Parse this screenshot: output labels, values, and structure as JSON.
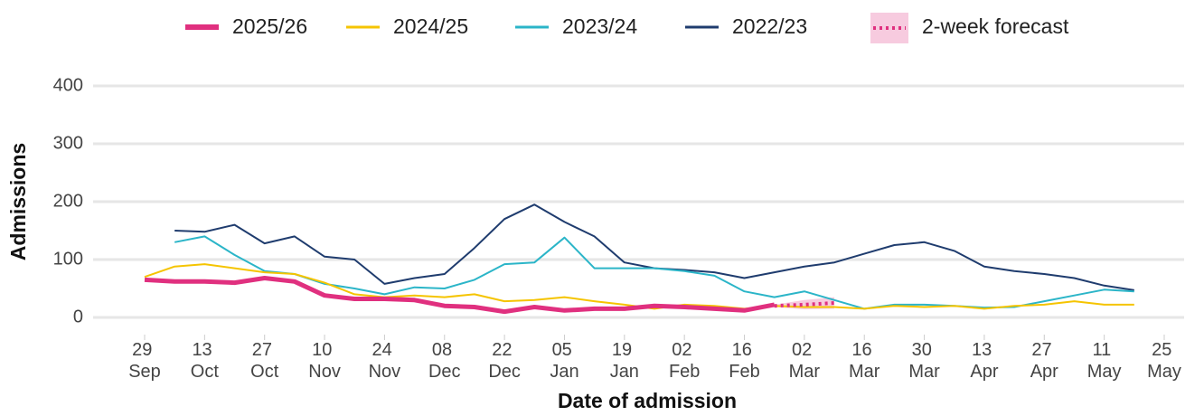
{
  "chart_data": {
    "type": "line",
    "x_label": "Date of admission",
    "y_label": "Admissions",
    "x": [
      "29 Sep",
      "06 Oct",
      "13 Oct",
      "20 Oct",
      "27 Oct",
      "03 Nov",
      "10 Nov",
      "17 Nov",
      "24 Nov",
      "01 Dec",
      "08 Dec",
      "15 Dec",
      "22 Dec",
      "29 Dec",
      "05 Jan",
      "12 Jan",
      "19 Jan",
      "26 Jan",
      "02 Feb",
      "09 Feb",
      "16 Feb",
      "23 Feb",
      "02 Mar",
      "09 Mar",
      "16 Mar",
      "23 Mar",
      "30 Mar",
      "06 Apr",
      "13 Apr",
      "20 Apr",
      "27 Apr",
      "04 May",
      "11 May",
      "18 May",
      "25 May"
    ],
    "xticks": [
      "29 Sep",
      "13 Oct",
      "27 Oct",
      "10 Nov",
      "24 Nov",
      "08 Dec",
      "22 Dec",
      "05 Jan",
      "19 Jan",
      "02 Feb",
      "16 Feb",
      "02 Mar",
      "16 Mar",
      "30 Mar",
      "13 Apr",
      "27 Apr",
      "11 May",
      "25 May"
    ],
    "ylim": [
      -30,
      420
    ],
    "yticks": [
      0,
      100,
      200,
      300,
      400
    ],
    "grid": true,
    "series": [
      {
        "name": "2025/26",
        "color": "#e0307f",
        "width": 5,
        "values": [
          65,
          62,
          62,
          60,
          68,
          62,
          38,
          32,
          32,
          30,
          20,
          18,
          10,
          18,
          12,
          15,
          15,
          20,
          18,
          15,
          12,
          22,
          null,
          null,
          null,
          null,
          null,
          null,
          null,
          null,
          null,
          null,
          null,
          null,
          null
        ]
      },
      {
        "name": "2024/25",
        "color": "#f5c400",
        "width": 2,
        "values": [
          70,
          88,
          92,
          85,
          78,
          75,
          60,
          40,
          35,
          38,
          35,
          40,
          28,
          30,
          35,
          28,
          22,
          15,
          22,
          20,
          15,
          20,
          18,
          18,
          15,
          20,
          18,
          20,
          15,
          20,
          22,
          28,
          22,
          22,
          null
        ]
      },
      {
        "name": "2023/24",
        "color": "#2bb5c8",
        "width": 2,
        "values": [
          null,
          130,
          140,
          108,
          80,
          75,
          58,
          50,
          40,
          52,
          50,
          65,
          92,
          95,
          138,
          85,
          85,
          85,
          80,
          72,
          45,
          35,
          45,
          30,
          15,
          22,
          22,
          20,
          17,
          18,
          28,
          38,
          48,
          45,
          null
        ]
      },
      {
        "name": "2022/23",
        "color": "#1f3c6e",
        "width": 2,
        "values": [
          null,
          150,
          148,
          160,
          128,
          140,
          105,
          100,
          58,
          68,
          75,
          120,
          170,
          195,
          165,
          140,
          95,
          85,
          82,
          78,
          68,
          78,
          88,
          95,
          110,
          125,
          130,
          115,
          88,
          80,
          75,
          68,
          55,
          47,
          null
        ]
      }
    ],
    "forecast": {
      "name": "2-week forecast",
      "color": "#e0307f",
      "values": [
        null,
        null,
        null,
        null,
        null,
        null,
        null,
        null,
        null,
        null,
        null,
        null,
        null,
        null,
        null,
        null,
        null,
        null,
        null,
        null,
        null,
        20,
        22,
        25,
        null,
        null,
        null,
        null,
        null,
        null,
        null,
        null,
        null,
        null,
        null
      ],
      "lower": [
        null,
        null,
        null,
        null,
        null,
        null,
        null,
        null,
        null,
        null,
        null,
        null,
        null,
        null,
        null,
        null,
        null,
        null,
        null,
        null,
        null,
        18,
        14,
        15,
        null,
        null,
        null,
        null,
        null,
        null,
        null,
        null,
        null,
        null,
        null
      ],
      "upper": [
        null,
        null,
        null,
        null,
        null,
        null,
        null,
        null,
        null,
        null,
        null,
        null,
        null,
        null,
        null,
        null,
        null,
        null,
        null,
        null,
        null,
        22,
        30,
        35,
        null,
        null,
        null,
        null,
        null,
        null,
        null,
        null,
        null,
        null,
        null
      ]
    }
  }
}
